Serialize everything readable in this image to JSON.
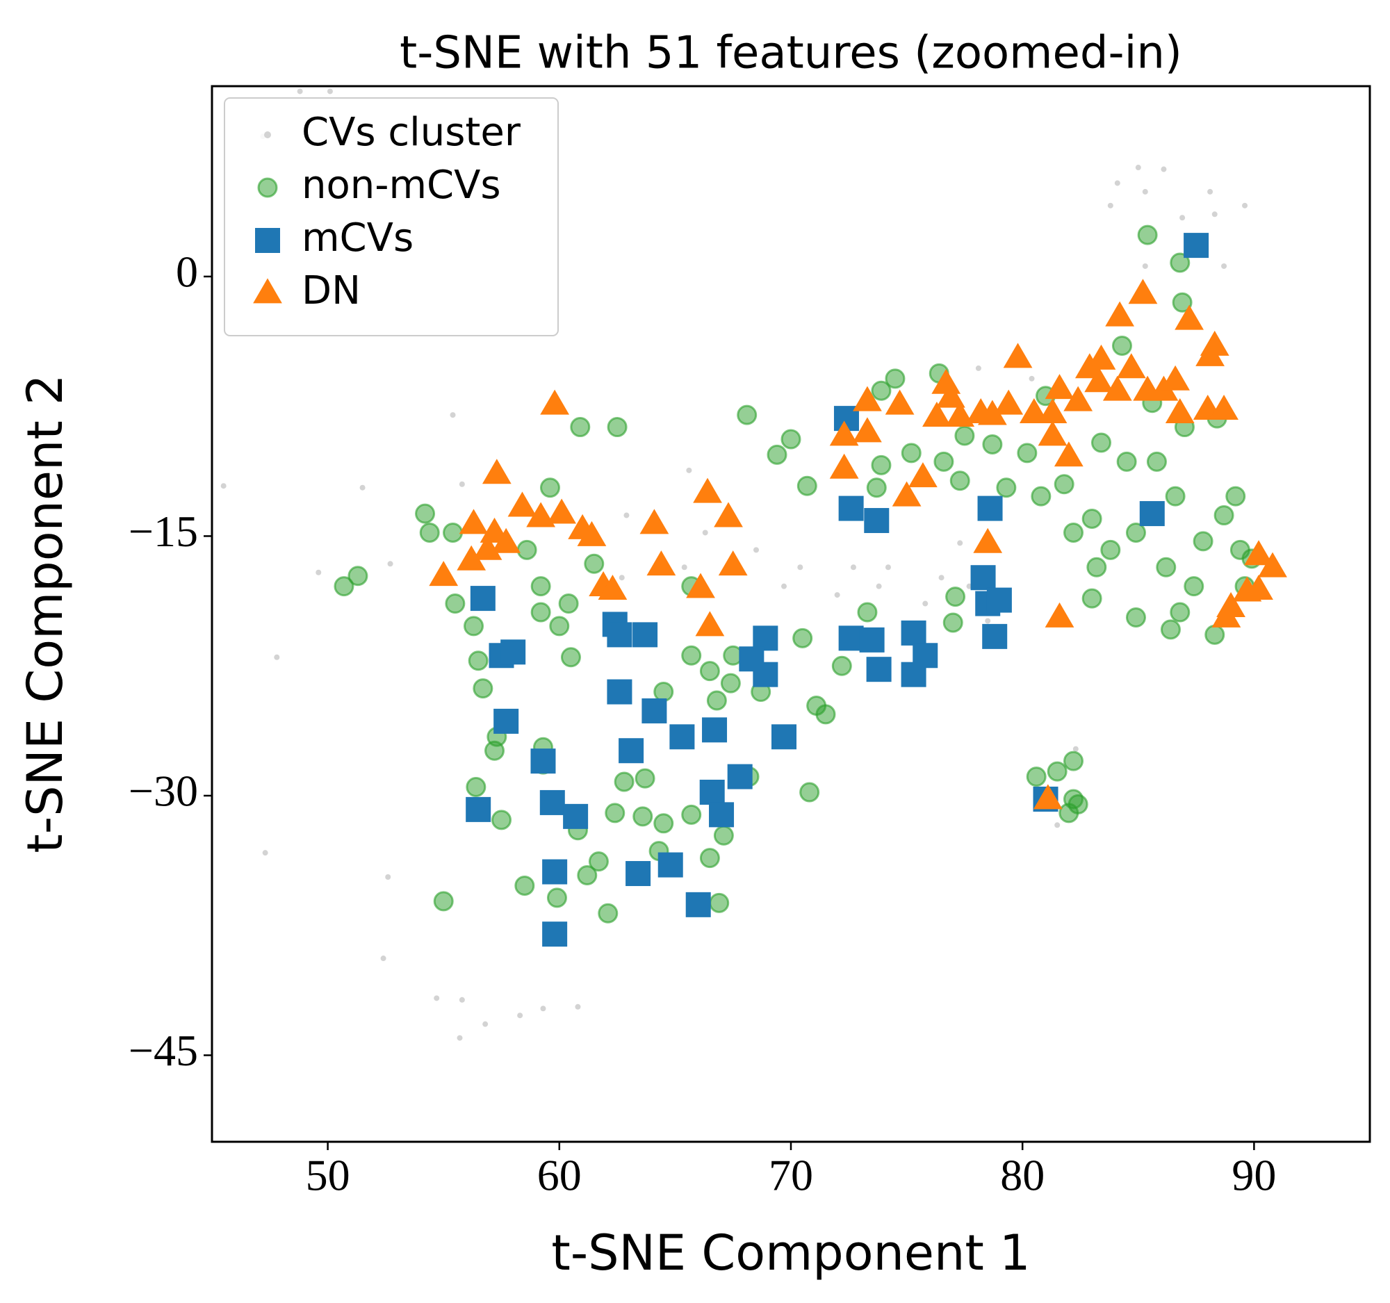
{
  "chart_data": {
    "type": "scatter",
    "title": "t-SNE with 51 features (zoomed-in)",
    "x_label": "t-SNE Component 1",
    "y_label": "t-SNE Component 2",
    "xlim": [
      45,
      95
    ],
    "ylim": [
      -50,
      11
    ],
    "xticks": [
      50,
      60,
      70,
      80,
      90
    ],
    "yticks": [
      0,
      {
        "value": -15,
        "label": "−15"
      },
      {
        "value": -30,
        "label": "−30"
      },
      {
        "value": -45,
        "label": "−45"
      }
    ],
    "grid": false,
    "legend": "upper left",
    "series": [
      {
        "name": "CVs cluster",
        "color": "#c8c8c8",
        "marker": "dot",
        "x": [
          48.8,
          50.1,
          47.2,
          45.5,
          47.8,
          47.3,
          52.4,
          52.6,
          54.7,
          55.8,
          55.7,
          56.8,
          58.3,
          59.3,
          60.8,
          55.4,
          51.5,
          55.8,
          49.6,
          52.7,
          62.9,
          65.6,
          66.3,
          68.5,
          69.7,
          70.4,
          72.0,
          73.8,
          74.2,
          75.8,
          76.5,
          77.7,
          77.3,
          78.1,
          80.4,
          78.5,
          85.0,
          86.1,
          84.1,
          83.8,
          85.3,
          86.9,
          88.1,
          88.3,
          89.6,
          88.7,
          85.3,
          82.3,
          81.5,
          72.7,
          65.4,
          62.7
        ],
        "y": [
          10.7,
          10.7,
          8.1,
          -12.1,
          -22.0,
          -33.3,
          -39.4,
          -34.7,
          -41.7,
          -41.8,
          -44.0,
          -43.2,
          -42.7,
          -42.3,
          -42.2,
          -8.0,
          -12.2,
          -12.0,
          -17.1,
          -16.6,
          -13.8,
          -11.2,
          -14.8,
          -15.8,
          -17.9,
          -16.8,
          -18.4,
          -17.9,
          -16.8,
          -18.9,
          -17.4,
          -17.9,
          -15.4,
          -5.3,
          -5.9,
          -19.9,
          6.3,
          6.2,
          5.4,
          4.1,
          4.9,
          3.4,
          4.9,
          3.6,
          4.1,
          0.6,
          0.6,
          -27.3,
          -31.7,
          -16.8,
          -16.8,
          -17.4
        ]
      },
      {
        "name": "non-mCVs",
        "color": "#2ca02c",
        "marker": "circle",
        "x": [
          54.2,
          54.4,
          50.7,
          51.3,
          55.4,
          55.5,
          56.3,
          56.5,
          56.7,
          57.3,
          57.2,
          56.4,
          57.5,
          55.0,
          58.5,
          59.6,
          60.9,
          62.5,
          59.2,
          60.0,
          60.5,
          60.4,
          61.5,
          59.2,
          58.6,
          59.3,
          59.3,
          60.8,
          61.7,
          61.2,
          62.1,
          59.9,
          62.4,
          62.8,
          63.7,
          63.6,
          64.5,
          64.3,
          64.5,
          65.7,
          65.7,
          66.5,
          67.5,
          67.4,
          66.8,
          65.7,
          66.5,
          66.9,
          67.1,
          68.1,
          68.2,
          68.7,
          70.0,
          69.4,
          70.5,
          70.7,
          71.1,
          71.5,
          70.8,
          72.2,
          73.3,
          73.9,
          73.7,
          73.9,
          74.5,
          75.2,
          76.4,
          76.6,
          77.3,
          77.1,
          77.0,
          77.5,
          78.7,
          79.3,
          80.2,
          80.8,
          81.0,
          81.8,
          82.2,
          80.6,
          81.5,
          82.2,
          82.2,
          82.0,
          82.4,
          83.0,
          83.2,
          83.0,
          83.4,
          83.8,
          84.3,
          84.5,
          84.9,
          84.9,
          85.4,
          85.6,
          85.8,
          86.2,
          86.6,
          86.8,
          86.9,
          87.0,
          86.8,
          86.4,
          87.4,
          87.8,
          88.4,
          88.7,
          89.2,
          89.4,
          88.3,
          89.6,
          89.9
        ],
        "y": [
          -13.7,
          -14.8,
          -17.9,
          -17.3,
          -14.8,
          -18.9,
          -20.2,
          -22.2,
          -23.8,
          -26.6,
          -27.4,
          -29.5,
          -31.4,
          -36.1,
          -35.2,
          -12.2,
          -8.7,
          -8.7,
          -19.4,
          -20.2,
          -22.0,
          -18.9,
          -16.6,
          -17.9,
          -15.8,
          -27.2,
          -28.2,
          -32.0,
          -33.8,
          -34.6,
          -36.8,
          -35.9,
          -31.0,
          -29.2,
          -29.0,
          -31.2,
          -31.6,
          -33.2,
          -24.0,
          -21.9,
          -17.9,
          -22.8,
          -21.9,
          -23.5,
          -24.5,
          -31.1,
          -33.6,
          -36.2,
          -32.3,
          -8.0,
          -28.9,
          -24.0,
          -9.4,
          -10.3,
          -20.9,
          -12.1,
          -24.8,
          -25.3,
          -29.8,
          -22.5,
          -19.4,
          -10.9,
          -12.2,
          -6.6,
          -5.9,
          -10.2,
          -5.6,
          -10.7,
          -11.8,
          -18.5,
          -20.0,
          -9.2,
          -9.7,
          -12.2,
          -10.2,
          -12.7,
          -6.9,
          -12.0,
          -14.8,
          -28.9,
          -28.6,
          -28.0,
          -30.2,
          -31.0,
          -30.5,
          -14.0,
          -16.8,
          -18.6,
          -9.6,
          -15.8,
          -4.0,
          -10.7,
          -14.8,
          -19.7,
          2.4,
          -7.3,
          -10.7,
          -16.8,
          -12.7,
          0.8,
          -1.5,
          -8.7,
          -19.4,
          -20.4,
          -17.9,
          -15.3,
          -8.2,
          -13.8,
          -12.7,
          -15.8,
          -20.7,
          -17.9,
          -16.3
        ]
      },
      {
        "name": "mCVs",
        "color": "#1f77b4",
        "marker": "square",
        "x": [
          72.4,
          87.5,
          56.7,
          57.5,
          58.0,
          57.7,
          59.3,
          56.5,
          59.7,
          60.7,
          59.8,
          59.8,
          62.4,
          62.6,
          63.7,
          62.6,
          64.1,
          63.1,
          65.3,
          66.7,
          63.4,
          64.8,
          66.0,
          66.6,
          67.0,
          67.8,
          68.9,
          68.3,
          68.9,
          69.7,
          72.6,
          73.5,
          73.8,
          75.3,
          75.8,
          75.3,
          72.6,
          73.7,
          78.6,
          78.3,
          78.5,
          79.0,
          78.8,
          85.6,
          81.0
        ],
        "y": [
          -8.2,
          1.8,
          -18.6,
          -21.9,
          -21.7,
          -25.7,
          -28.0,
          -30.8,
          -30.4,
          -31.2,
          -34.4,
          -38.0,
          -20.1,
          -20.7,
          -20.7,
          -24.0,
          -25.1,
          -27.4,
          -26.6,
          -26.2,
          -34.5,
          -34.0,
          -36.3,
          -29.8,
          -31.1,
          -28.9,
          -20.9,
          -22.1,
          -23.0,
          -26.6,
          -20.9,
          -21.0,
          -22.7,
          -20.6,
          -21.9,
          -23.0,
          -13.4,
          -14.1,
          -13.4,
          -17.4,
          -18.9,
          -18.7,
          -20.8,
          -13.7,
          -30.2
        ]
      },
      {
        "name": "DN",
        "color": "#ff7f0e",
        "marker": "triangle",
        "x": [
          59.8,
          57.3,
          56.3,
          55.0,
          56.2,
          57.2,
          57.7,
          56.9,
          58.4,
          59.2,
          60.1,
          61.0,
          61.4,
          61.9,
          62.3,
          64.1,
          64.4,
          66.4,
          67.3,
          67.5,
          66.1,
          66.5,
          72.3,
          72.3,
          73.3,
          73.3,
          74.7,
          75.0,
          75.7,
          76.3,
          76.7,
          76.9,
          77.3,
          78.2,
          78.7,
          78.5,
          79.4,
          79.8,
          80.5,
          81.3,
          81.3,
          81.6,
          82.0,
          82.4,
          82.9,
          83.4,
          83.3,
          84.1,
          84.2,
          84.7,
          85.2,
          85.4,
          86.1,
          86.6,
          86.8,
          87.2,
          88.1,
          88.3,
          88.0,
          88.7,
          81.6,
          81.1,
          88.8,
          89.0,
          89.7,
          90.2,
          90.2,
          90.8
        ],
        "y": [
          -7.4,
          -11.4,
          -14.3,
          -17.3,
          -16.4,
          -14.8,
          -15.4,
          -15.8,
          -13.3,
          -13.9,
          -13.7,
          -14.6,
          -15.0,
          -17.9,
          -18.1,
          -14.3,
          -16.7,
          -12.5,
          -13.9,
          -16.7,
          -18.0,
          -20.2,
          -9.2,
          -11.1,
          -7.2,
          -9.0,
          -7.4,
          -12.7,
          -11.6,
          -8.1,
          -6.2,
          -7.0,
          -8.1,
          -7.9,
          -8.0,
          -15.4,
          -7.4,
          -4.7,
          -7.9,
          -7.9,
          -9.2,
          -6.5,
          -10.4,
          -7.2,
          -5.3,
          -4.8,
          -6.1,
          -6.6,
          -2.3,
          -5.3,
          -1.0,
          -6.6,
          -6.6,
          -6.0,
          -7.9,
          -2.5,
          -4.6,
          -4.0,
          -7.7,
          -7.7,
          -19.7,
          -30.2,
          -19.7,
          -19.1,
          -18.2,
          -18.1,
          -16.1,
          -16.8
        ]
      }
    ]
  }
}
